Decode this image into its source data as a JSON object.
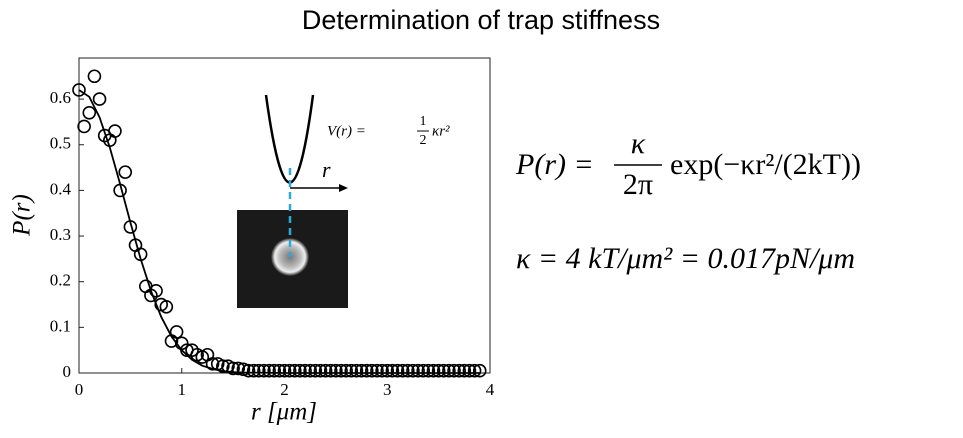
{
  "chart_data": {
    "type": "scatter",
    "title": "Determination of trap stiffness",
    "xlabel": "r [μm]",
    "ylabel": "P(r)",
    "xlim": [
      0,
      4
    ],
    "ylim": [
      0,
      0.69
    ],
    "xticks": [
      0,
      1,
      2,
      3,
      4
    ],
    "yticks": [
      0,
      0.1,
      0.2,
      0.3,
      0.4,
      0.5,
      0.6
    ],
    "color": "#000000",
    "x": [
      0,
      0.05,
      0.1,
      0.15,
      0.2,
      0.25,
      0.3,
      0.35,
      0.4,
      0.45,
      0.5,
      0.55,
      0.6,
      0.65,
      0.7,
      0.75,
      0.8,
      0.85,
      0.9,
      0.95,
      1.0,
      1.05,
      1.1,
      1.15,
      1.2,
      1.25,
      1.3,
      1.35,
      1.4,
      1.45,
      1.5,
      1.55,
      1.6,
      1.65,
      1.7,
      1.75,
      1.8,
      1.85,
      1.9,
      1.95,
      2.0,
      2.05,
      2.1,
      2.15,
      2.2,
      2.25,
      2.3,
      2.35,
      2.4,
      2.45,
      2.5,
      2.55,
      2.6,
      2.65,
      2.7,
      2.75,
      2.8,
      2.85,
      2.9,
      2.95,
      3.0,
      3.05,
      3.1,
      3.15,
      3.2,
      3.25,
      3.3,
      3.35,
      3.4,
      3.45,
      3.5,
      3.55,
      3.6,
      3.65,
      3.7,
      3.75,
      3.8,
      3.85,
      3.9
    ],
    "values": [
      0.62,
      0.54,
      0.57,
      0.65,
      0.6,
      0.52,
      0.51,
      0.53,
      0.4,
      0.44,
      0.32,
      0.28,
      0.26,
      0.19,
      0.17,
      0.18,
      0.15,
      0.145,
      0.07,
      0.09,
      0.065,
      0.05,
      0.05,
      0.04,
      0.035,
      0.04,
      0.02,
      0.02,
      0.015,
      0.015,
      0.01,
      0.01,
      0.008,
      0.005,
      0.005,
      0.005,
      0.005,
      0.005,
      0.005,
      0.005,
      0.005,
      0.005,
      0.005,
      0.005,
      0.005,
      0.005,
      0.005,
      0.005,
      0.005,
      0.005,
      0.005,
      0.005,
      0.005,
      0.005,
      0.005,
      0.005,
      0.005,
      0.005,
      0.005,
      0.005,
      0.005,
      0.005,
      0.005,
      0.005,
      0.005,
      0.005,
      0.005,
      0.005,
      0.005,
      0.005,
      0.005,
      0.005,
      0.005,
      0.005,
      0.005,
      0.005,
      0.005,
      0.005,
      0.005
    ],
    "fit": {
      "x": [
        0,
        0.1,
        0.2,
        0.3,
        0.4,
        0.5,
        0.6,
        0.7,
        0.8,
        0.9,
        1.0,
        1.1,
        1.2,
        1.3,
        1.4,
        1.5,
        1.6,
        2,
        3,
        3.9
      ],
      "values": [
        0.62,
        0.605,
        0.56,
        0.494,
        0.414,
        0.33,
        0.25,
        0.18,
        0.123,
        0.08,
        0.05,
        0.029,
        0.016,
        0.009,
        0.004,
        0.002,
        0.001,
        0,
        0,
        0
      ]
    },
    "inset": {
      "lhs": "V(r) =",
      "num": "1",
      "den": "2",
      "rhs": "κr²",
      "arrow_label": "r"
    },
    "equations": {
      "eq1_lhs": "P(r) =",
      "eq1_num": "κ",
      "eq1_den": "2π",
      "eq1_rhs": "exp(−κr²/(2kT))",
      "eq2": "κ = 4 kT/μm² = 0.017pN/μm"
    }
  }
}
